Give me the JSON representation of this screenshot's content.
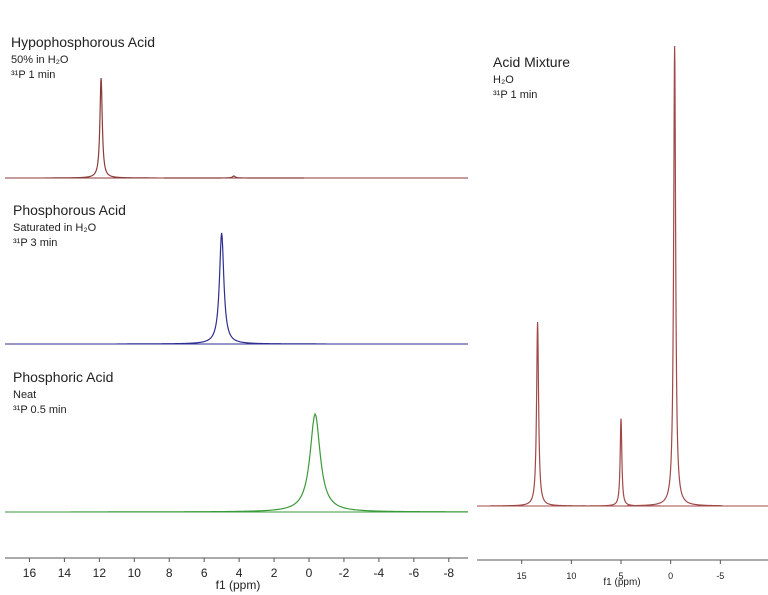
{
  "chart_data": [
    {
      "type": "spectrum",
      "xlabel": "f1 (ppm)",
      "xlim": [
        17.4,
        -9.1
      ],
      "xticks": [
        16,
        14,
        12,
        10,
        8,
        6,
        4,
        2,
        0,
        -2,
        -4,
        -6,
        -8
      ],
      "spectra": [
        {
          "title": "Hypophosphorous Acid",
          "lines": [
            "50% in H₂O",
            "³¹P 1 min"
          ],
          "color": "#8b3a3a",
          "peaks": [
            {
              "ppm": 11.9,
              "height": 100,
              "width": 0.08
            },
            {
              "ppm": 4.3,
              "height": 2,
              "width": 0.1
            }
          ]
        },
        {
          "title": "Phosphorous Acid",
          "lines": [
            "Saturated in H₂O",
            "³¹P 3 min"
          ],
          "color": "#2e2e8f",
          "peaks": [
            {
              "ppm": 5.0,
              "height": 100,
              "width": 0.15
            }
          ]
        },
        {
          "title": "Phosphoric Acid",
          "lines": [
            "Neat",
            "³¹P 0.5 min"
          ],
          "color": "#3a9a3a",
          "peaks": [
            {
              "ppm": -0.35,
              "height": 100,
              "width": 0.35
            }
          ]
        }
      ]
    },
    {
      "type": "spectrum",
      "xlabel": "f1 (ppm)",
      "xlim": [
        19.5,
        -9.8
      ],
      "xticks": [
        15,
        10,
        5,
        0,
        -5
      ],
      "spectra": [
        {
          "title": "Acid Mixture",
          "lines": [
            "H₂O",
            "³¹P 1 min"
          ],
          "color": "#a04848",
          "peaks": [
            {
              "ppm": 13.4,
              "height": 40,
              "width": 0.12
            },
            {
              "ppm": 5.0,
              "height": 19,
              "width": 0.1
            },
            {
              "ppm": -0.4,
              "height": 100,
              "width": 0.12
            }
          ]
        }
      ]
    }
  ]
}
